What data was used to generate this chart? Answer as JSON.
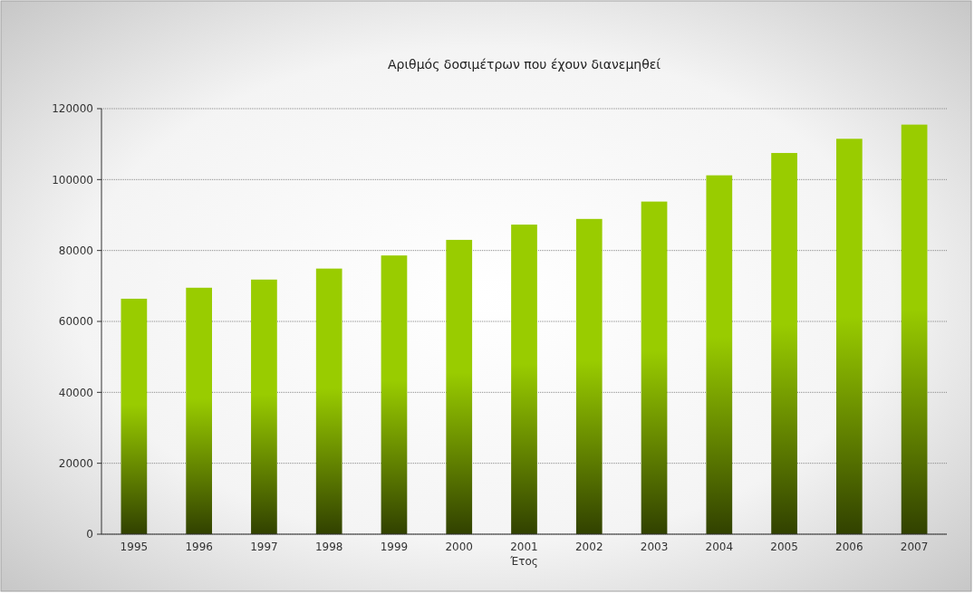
{
  "chart_data": {
    "type": "bar",
    "title": "Αριθμός δοσιμέτρων που έχουν διανεμηθεί",
    "xlabel": "Έτος",
    "categories": [
      "1995",
      "1996",
      "1997",
      "1998",
      "1999",
      "2000",
      "2001",
      "2002",
      "2003",
      "2004",
      "2005",
      "2006",
      "2007"
    ],
    "values": [
      66400,
      69500,
      71800,
      74900,
      78600,
      83000,
      87300,
      88900,
      93800,
      101200,
      107500,
      111500,
      115500
    ],
    "color": "#99cc00",
    "ylim": [
      0,
      120000
    ],
    "yticks": [
      0,
      20000,
      40000,
      60000,
      80000,
      100000,
      120000
    ],
    "grid": "y"
  }
}
